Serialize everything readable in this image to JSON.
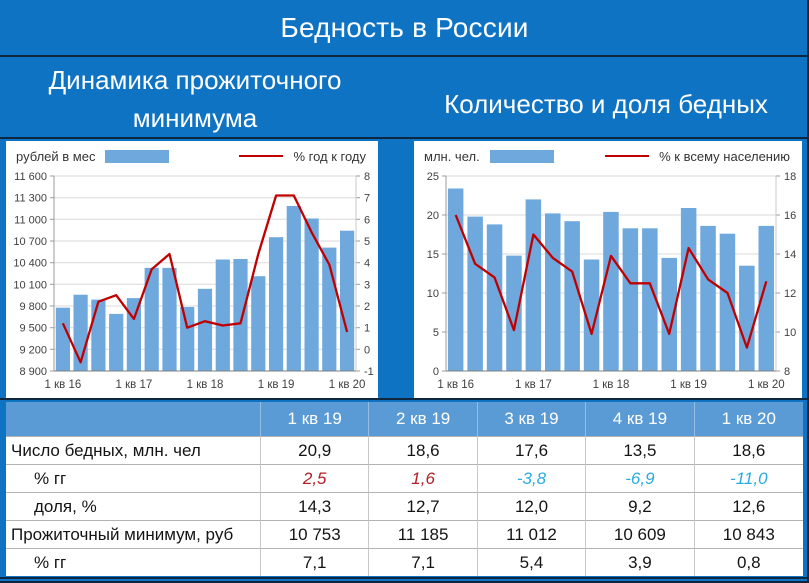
{
  "page": {
    "title": "Бедность в России"
  },
  "colors": {
    "background": "#0f73c4",
    "divider": "#0d2740",
    "bar": "#6fa8dc",
    "line": "#c00000",
    "header_row": "#5b9bd5",
    "positive": "#b42025",
    "negative": "#29abe2"
  },
  "chart_data": [
    {
      "type": "bar",
      "title": "Динамика прожиточного минимума",
      "legend": {
        "bars": "рублей в мес",
        "line": "% год к году"
      },
      "categories": [
        "1 кв 16",
        "2 кв 16",
        "3 кв 16",
        "4 кв 16",
        "1 кв 17",
        "2 кв 17",
        "3 кв 17",
        "4 кв 17",
        "1 кв 18",
        "2 кв 18",
        "3 кв 18",
        "4 кв 18",
        "1 кв 19",
        "2 кв 19",
        "3 кв 19",
        "4 кв 19",
        "1 кв 20"
      ],
      "x_tick_labels": [
        "1 кв 16",
        "1 кв 17",
        "1 кв 18",
        "1 кв 19",
        "1 кв 20"
      ],
      "x_tick_indices": [
        0,
        4,
        8,
        12,
        16
      ],
      "bars": [
        9776,
        9956,
        9889,
        9691,
        9909,
        10329,
        10328,
        9786,
        10038,
        10444,
        10451,
        10213,
        10753,
        11185,
        11012,
        10609,
        10843
      ],
      "line": [
        1.2,
        -0.6,
        2.2,
        2.5,
        1.4,
        3.7,
        4.4,
        1.0,
        1.3,
        1.1,
        1.2,
        4.4,
        7.1,
        7.1,
        5.4,
        3.9,
        0.8
      ],
      "left_axis": {
        "min": 8900,
        "max": 11600,
        "step": 300,
        "labels": [
          "8 900",
          "9 200",
          "9 500",
          "9 800",
          "10 100",
          "10 400",
          "10 700",
          "11 000",
          "11 300",
          "11 600"
        ]
      },
      "right_axis": {
        "min": -1,
        "max": 8,
        "step": 1,
        "labels": [
          "-1",
          "0",
          "1",
          "2",
          "3",
          "4",
          "5",
          "6",
          "7",
          "8"
        ]
      }
    },
    {
      "type": "bar",
      "title": "Количество и доля бедных",
      "legend": {
        "bars": "млн. чел.",
        "line": "% к всему населению"
      },
      "categories": [
        "1 кв 16",
        "2 кв 16",
        "3 кв 16",
        "4 кв 16",
        "1 кв 17",
        "2 кв 17",
        "3 кв 17",
        "4 кв 17",
        "1 кв 18",
        "2 кв 18",
        "3 кв 18",
        "4 кв 18",
        "1 кв 19",
        "2 кв 19",
        "3 кв 19",
        "4 кв 19",
        "1 кв 20"
      ],
      "x_tick_labels": [
        "1 кв 16",
        "1 кв 17",
        "1 кв 18",
        "1 кв 19",
        "1 кв 20"
      ],
      "x_tick_indices": [
        0,
        4,
        8,
        12,
        16
      ],
      "bars": [
        23.4,
        19.8,
        18.8,
        14.8,
        22.0,
        20.2,
        19.2,
        14.3,
        20.4,
        18.3,
        18.3,
        14.5,
        20.9,
        18.6,
        17.6,
        13.5,
        18.6
      ],
      "line": [
        16.0,
        13.5,
        12.8,
        10.1,
        15.0,
        13.8,
        13.1,
        9.9,
        13.9,
        12.5,
        12.5,
        9.9,
        14.3,
        12.7,
        12.0,
        9.2,
        12.6
      ],
      "left_axis": {
        "min": 0,
        "max": 25,
        "step": 5,
        "labels": [
          "0",
          "5",
          "10",
          "15",
          "20",
          "25"
        ]
      },
      "right_axis": {
        "min": 8,
        "max": 18,
        "step": 2,
        "labels": [
          "8",
          "10",
          "12",
          "14",
          "16",
          "18"
        ]
      }
    }
  ],
  "table": {
    "columns": [
      "1 кв 19",
      "2 кв 19",
      "3 кв 19",
      "4 кв 19",
      "1 кв 20"
    ],
    "rows": [
      {
        "label": "Число бедных, млн. чел",
        "indent": false,
        "style": "plain",
        "values": [
          "20,9",
          "18,6",
          "17,6",
          "13,5",
          "18,6"
        ]
      },
      {
        "label": "% гг",
        "indent": true,
        "style": "delta",
        "values": [
          "2,5",
          "1,6",
          "-3,8",
          "-6,9",
          "-11,0"
        ]
      },
      {
        "label": "доля, %",
        "indent": true,
        "style": "plain",
        "values": [
          "14,3",
          "12,7",
          "12,0",
          "9,2",
          "12,6"
        ]
      },
      {
        "label": "Прожиточный минимум, руб",
        "indent": false,
        "style": "plain",
        "values": [
          "10 753",
          "11 185",
          "11 012",
          "10 609",
          "10 843"
        ]
      },
      {
        "label": "% гг",
        "indent": true,
        "style": "plain",
        "values": [
          "7,1",
          "7,1",
          "5,4",
          "3,9",
          "0,8"
        ]
      }
    ]
  }
}
